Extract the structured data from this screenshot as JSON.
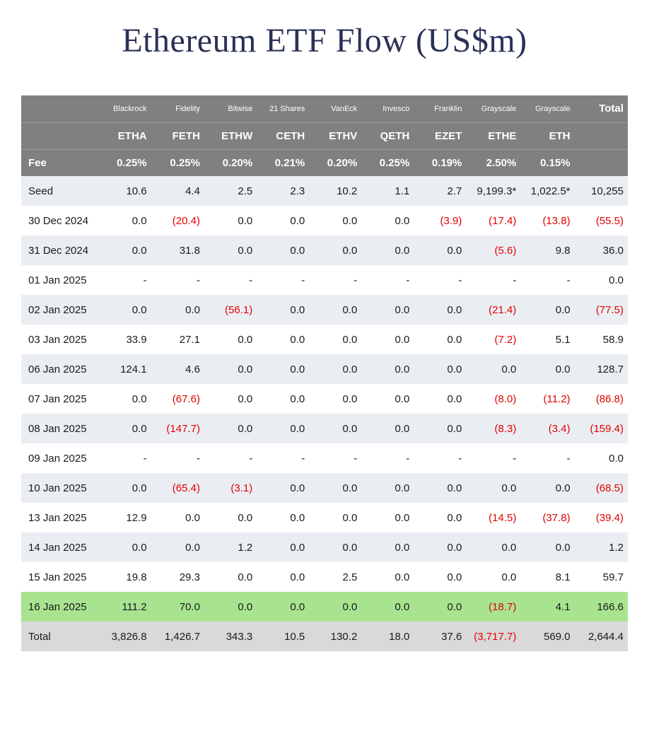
{
  "title": "Ethereum ETF Flow (US$m)",
  "colors": {
    "title_color": "#2a3158",
    "header_bg": "#808080",
    "header_text": "#ffffff",
    "row_even_bg": "#eaeef3",
    "row_odd_bg": "#ffffff",
    "highlight_bg": "#a8e48f",
    "total_bg": "#d9d9d9",
    "negative_text": "#e30000",
    "normal_text": "#1a1a1a"
  },
  "typography": {
    "title_font": "Georgia serif",
    "title_size_pt": 36,
    "body_size_pt": 11,
    "firm_size_pt": 8
  },
  "firms": [
    "",
    "Blackrock",
    "Fidelity",
    "Bitwise",
    "21 Shares",
    "VanEck",
    "Invesco",
    "Franklin",
    "Grayscale",
    "Grayscale",
    "Total"
  ],
  "tickers": [
    "",
    "ETHA",
    "FETH",
    "ETHW",
    "CETH",
    "ETHV",
    "QETH",
    "EZET",
    "ETHE",
    "ETH",
    ""
  ],
  "fee_label": "Fee",
  "fees": [
    "0.25%",
    "0.25%",
    "0.20%",
    "0.21%",
    "0.20%",
    "0.25%",
    "0.19%",
    "2.50%",
    "0.15%",
    ""
  ],
  "rows": [
    {
      "label": "Seed",
      "highlight": false,
      "total": false,
      "cells": [
        {
          "v": "10.6"
        },
        {
          "v": "4.4"
        },
        {
          "v": "2.5"
        },
        {
          "v": "2.3"
        },
        {
          "v": "10.2"
        },
        {
          "v": "1.1"
        },
        {
          "v": "2.7"
        },
        {
          "v": "9,199.3*"
        },
        {
          "v": "1,022.5*"
        },
        {
          "v": "10,255"
        }
      ]
    },
    {
      "label": "30 Dec 2024",
      "highlight": false,
      "total": false,
      "cells": [
        {
          "v": "0.0"
        },
        {
          "v": "(20.4)",
          "neg": true
        },
        {
          "v": "0.0"
        },
        {
          "v": "0.0"
        },
        {
          "v": "0.0"
        },
        {
          "v": "0.0"
        },
        {
          "v": "(3.9)",
          "neg": true
        },
        {
          "v": "(17.4)",
          "neg": true
        },
        {
          "v": "(13.8)",
          "neg": true
        },
        {
          "v": "(55.5)",
          "neg": true
        }
      ]
    },
    {
      "label": "31 Dec 2024",
      "highlight": false,
      "total": false,
      "cells": [
        {
          "v": "0.0"
        },
        {
          "v": "31.8"
        },
        {
          "v": "0.0"
        },
        {
          "v": "0.0"
        },
        {
          "v": "0.0"
        },
        {
          "v": "0.0"
        },
        {
          "v": "0.0"
        },
        {
          "v": "(5.6)",
          "neg": true
        },
        {
          "v": "9.8"
        },
        {
          "v": "36.0"
        }
      ]
    },
    {
      "label": "01 Jan 2025",
      "highlight": false,
      "total": false,
      "cells": [
        {
          "v": "-"
        },
        {
          "v": "-"
        },
        {
          "v": "-"
        },
        {
          "v": "-"
        },
        {
          "v": "-"
        },
        {
          "v": "-"
        },
        {
          "v": "-"
        },
        {
          "v": "-"
        },
        {
          "v": "-"
        },
        {
          "v": "0.0"
        }
      ]
    },
    {
      "label": "02 Jan 2025",
      "highlight": false,
      "total": false,
      "cells": [
        {
          "v": "0.0"
        },
        {
          "v": "0.0"
        },
        {
          "v": "(56.1)",
          "neg": true
        },
        {
          "v": "0.0"
        },
        {
          "v": "0.0"
        },
        {
          "v": "0.0"
        },
        {
          "v": "0.0"
        },
        {
          "v": "(21.4)",
          "neg": true
        },
        {
          "v": "0.0"
        },
        {
          "v": "(77.5)",
          "neg": true
        }
      ]
    },
    {
      "label": "03 Jan 2025",
      "highlight": false,
      "total": false,
      "cells": [
        {
          "v": "33.9"
        },
        {
          "v": "27.1"
        },
        {
          "v": "0.0"
        },
        {
          "v": "0.0"
        },
        {
          "v": "0.0"
        },
        {
          "v": "0.0"
        },
        {
          "v": "0.0"
        },
        {
          "v": "(7.2)",
          "neg": true
        },
        {
          "v": "5.1"
        },
        {
          "v": "58.9"
        }
      ]
    },
    {
      "label": "06 Jan 2025",
      "highlight": false,
      "total": false,
      "cells": [
        {
          "v": "124.1"
        },
        {
          "v": "4.6"
        },
        {
          "v": "0.0"
        },
        {
          "v": "0.0"
        },
        {
          "v": "0.0"
        },
        {
          "v": "0.0"
        },
        {
          "v": "0.0"
        },
        {
          "v": "0.0"
        },
        {
          "v": "0.0"
        },
        {
          "v": "128.7"
        }
      ]
    },
    {
      "label": "07 Jan 2025",
      "highlight": false,
      "total": false,
      "cells": [
        {
          "v": "0.0"
        },
        {
          "v": "(67.6)",
          "neg": true
        },
        {
          "v": "0.0"
        },
        {
          "v": "0.0"
        },
        {
          "v": "0.0"
        },
        {
          "v": "0.0"
        },
        {
          "v": "0.0"
        },
        {
          "v": "(8.0)",
          "neg": true
        },
        {
          "v": "(11.2)",
          "neg": true
        },
        {
          "v": "(86.8)",
          "neg": true
        }
      ]
    },
    {
      "label": "08 Jan 2025",
      "highlight": false,
      "total": false,
      "cells": [
        {
          "v": "0.0"
        },
        {
          "v": "(147.7)",
          "neg": true
        },
        {
          "v": "0.0"
        },
        {
          "v": "0.0"
        },
        {
          "v": "0.0"
        },
        {
          "v": "0.0"
        },
        {
          "v": "0.0"
        },
        {
          "v": "(8.3)",
          "neg": true
        },
        {
          "v": "(3.4)",
          "neg": true
        },
        {
          "v": "(159.4)",
          "neg": true
        }
      ]
    },
    {
      "label": "09 Jan 2025",
      "highlight": false,
      "total": false,
      "cells": [
        {
          "v": "-"
        },
        {
          "v": "-"
        },
        {
          "v": "-"
        },
        {
          "v": "-"
        },
        {
          "v": "-"
        },
        {
          "v": "-"
        },
        {
          "v": "-"
        },
        {
          "v": "-"
        },
        {
          "v": "-"
        },
        {
          "v": "0.0"
        }
      ]
    },
    {
      "label": "10 Jan 2025",
      "highlight": false,
      "total": false,
      "cells": [
        {
          "v": "0.0"
        },
        {
          "v": "(65.4)",
          "neg": true
        },
        {
          "v": "(3.1)",
          "neg": true
        },
        {
          "v": "0.0"
        },
        {
          "v": "0.0"
        },
        {
          "v": "0.0"
        },
        {
          "v": "0.0"
        },
        {
          "v": "0.0"
        },
        {
          "v": "0.0"
        },
        {
          "v": "(68.5)",
          "neg": true
        }
      ]
    },
    {
      "label": "13 Jan 2025",
      "highlight": false,
      "total": false,
      "cells": [
        {
          "v": "12.9"
        },
        {
          "v": "0.0"
        },
        {
          "v": "0.0"
        },
        {
          "v": "0.0"
        },
        {
          "v": "0.0"
        },
        {
          "v": "0.0"
        },
        {
          "v": "0.0"
        },
        {
          "v": "(14.5)",
          "neg": true
        },
        {
          "v": "(37.8)",
          "neg": true
        },
        {
          "v": "(39.4)",
          "neg": true
        }
      ]
    },
    {
      "label": "14 Jan 2025",
      "highlight": false,
      "total": false,
      "cells": [
        {
          "v": "0.0"
        },
        {
          "v": "0.0"
        },
        {
          "v": "1.2"
        },
        {
          "v": "0.0"
        },
        {
          "v": "0.0"
        },
        {
          "v": "0.0"
        },
        {
          "v": "0.0"
        },
        {
          "v": "0.0"
        },
        {
          "v": "0.0"
        },
        {
          "v": "1.2"
        }
      ]
    },
    {
      "label": "15 Jan 2025",
      "highlight": false,
      "total": false,
      "cells": [
        {
          "v": "19.8"
        },
        {
          "v": "29.3"
        },
        {
          "v": "0.0"
        },
        {
          "v": "0.0"
        },
        {
          "v": "2.5"
        },
        {
          "v": "0.0"
        },
        {
          "v": "0.0"
        },
        {
          "v": "0.0"
        },
        {
          "v": "8.1"
        },
        {
          "v": "59.7"
        }
      ]
    },
    {
      "label": "16 Jan 2025",
      "highlight": true,
      "total": false,
      "cells": [
        {
          "v": "111.2"
        },
        {
          "v": "70.0"
        },
        {
          "v": "0.0"
        },
        {
          "v": "0.0"
        },
        {
          "v": "0.0"
        },
        {
          "v": "0.0"
        },
        {
          "v": "0.0"
        },
        {
          "v": "(18.7)",
          "neg": true
        },
        {
          "v": "4.1"
        },
        {
          "v": "166.6"
        }
      ]
    },
    {
      "label": "Total",
      "highlight": false,
      "total": true,
      "cells": [
        {
          "v": "3,826.8"
        },
        {
          "v": "1,426.7"
        },
        {
          "v": "343.3"
        },
        {
          "v": "10.5"
        },
        {
          "v": "130.2"
        },
        {
          "v": "18.0"
        },
        {
          "v": "37.6"
        },
        {
          "v": "(3,717.7)",
          "neg": true
        },
        {
          "v": "569.0"
        },
        {
          "v": "2,644.4"
        }
      ]
    }
  ]
}
